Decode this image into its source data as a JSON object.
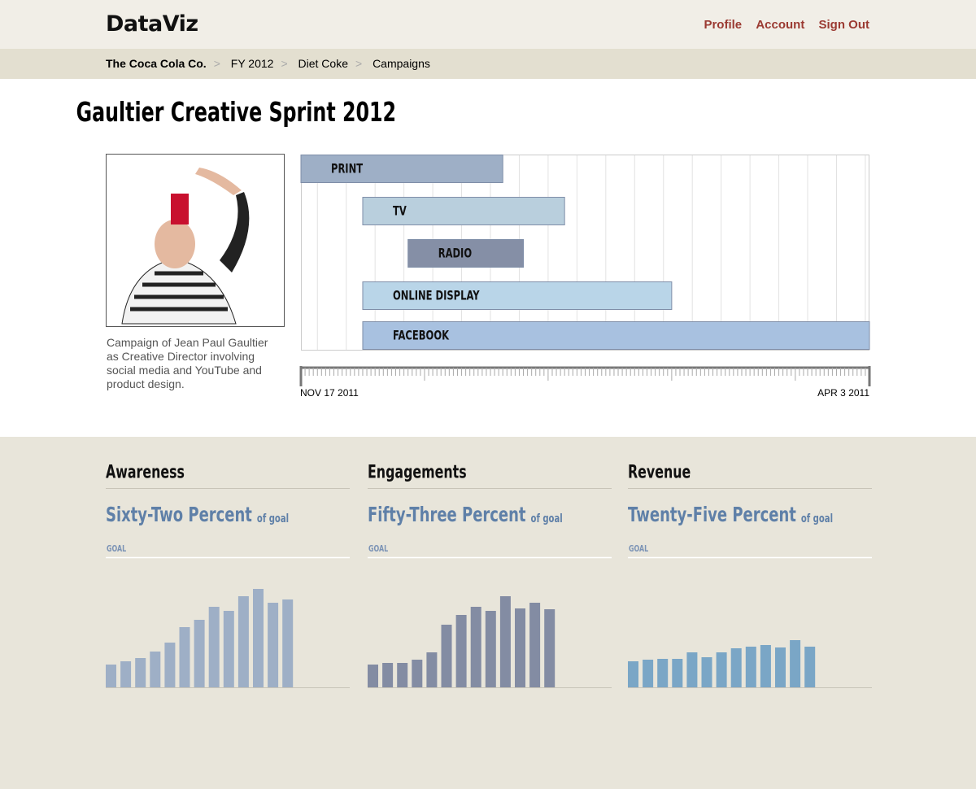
{
  "header": {
    "logo": "DataViz",
    "nav": [
      "Profile",
      "Account",
      "Sign Out"
    ]
  },
  "breadcrumb": [
    "The Coca Cola Co.",
    "FY 2012",
    "Diet Coke",
    "Campaigns"
  ],
  "campaign": {
    "title": "Gaultier Creative Sprint 2012",
    "caption": "Campaign of Jean Paul Gaultier as Creative Director involving social media and YouTube and product design."
  },
  "chart_data": [
    {
      "type": "gantt",
      "categories": [
        "PRINT",
        "TV",
        "RADIO",
        "ONLINE DISPLAY",
        "FACEBOOK"
      ],
      "start": [
        0,
        15,
        26,
        15,
        15
      ],
      "end": [
        49,
        64,
        54,
        90,
        138
      ],
      "colors": [
        "#9eafc6",
        "#b9cfdd",
        "#858fa6",
        "#b9d5e8",
        "#a8c1e0"
      ],
      "xlim": [
        0,
        138
      ],
      "xticks": [
        {
          "value": 0,
          "label": "NOV 17 2011"
        },
        {
          "value": 138,
          "label": "APR 3 2011"
        }
      ],
      "grid": true
    },
    {
      "type": "bar",
      "title": "Awareness",
      "headline": "Sixty-Two Percent",
      "headline_suffix": "of goal",
      "goal_label": "GOAL",
      "values": [
        28,
        32,
        36,
        44,
        55,
        74,
        83,
        99,
        94,
        112,
        121,
        104,
        108
      ],
      "color": "#9eafc6",
      "ylim": [
        0,
        155
      ]
    },
    {
      "type": "bar",
      "title": "Engagements",
      "headline": "Fifty-Three Percent",
      "headline_suffix": "of goal",
      "goal_label": "GOAL",
      "values": [
        28,
        30,
        30,
        34,
        43,
        77,
        89,
        99,
        94,
        112,
        97,
        104,
        96
      ],
      "color": "#838ca3",
      "ylim": [
        0,
        155
      ]
    },
    {
      "type": "bar",
      "title": "Revenue",
      "headline": "Twenty-Five Percent",
      "headline_suffix": "of goal",
      "goal_label": "GOAL",
      "values": [
        32,
        34,
        35,
        35,
        43,
        37,
        43,
        48,
        50,
        52,
        49,
        58,
        50
      ],
      "color": "#7aa6c6",
      "ylim": [
        0,
        155
      ]
    }
  ]
}
